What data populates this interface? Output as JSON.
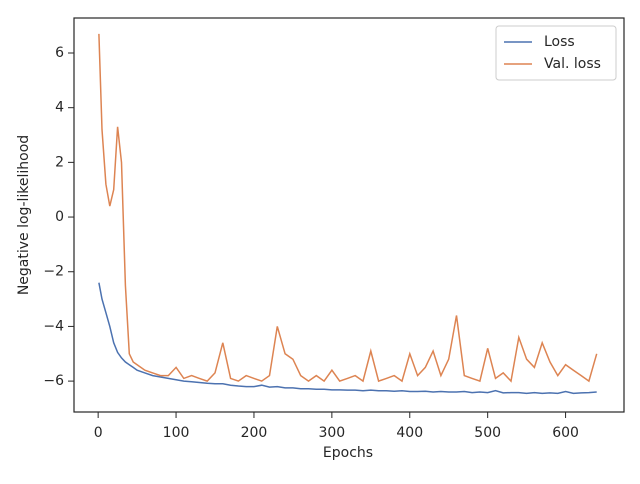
{
  "chart_data": {
    "type": "line",
    "xlabel": "Epochs",
    "ylabel": "Negative log-likelihood",
    "x": [
      1,
      5,
      10,
      15,
      20,
      25,
      30,
      35,
      40,
      45,
      50,
      60,
      70,
      80,
      90,
      100,
      110,
      120,
      130,
      140,
      150,
      160,
      170,
      180,
      190,
      200,
      210,
      220,
      230,
      240,
      250,
      260,
      270,
      280,
      290,
      300,
      310,
      320,
      330,
      340,
      350,
      360,
      370,
      380,
      390,
      400,
      410,
      420,
      430,
      440,
      450,
      460,
      470,
      480,
      490,
      500,
      510,
      520,
      530,
      540,
      550,
      560,
      570,
      580,
      590,
      600,
      610,
      620,
      630,
      640
    ],
    "series": [
      {
        "name": "Loss",
        "color": "#4c72b0",
        "values": [
          -2.4,
          -3.0,
          -3.5,
          -4.0,
          -4.6,
          -4.95,
          -5.15,
          -5.3,
          -5.4,
          -5.5,
          -5.6,
          -5.7,
          -5.8,
          -5.85,
          -5.9,
          -5.95,
          -6.0,
          -6.02,
          -6.05,
          -6.08,
          -6.1,
          -6.1,
          -6.15,
          -6.18,
          -6.2,
          -6.2,
          -6.15,
          -6.22,
          -6.2,
          -6.25,
          -6.25,
          -6.28,
          -6.28,
          -6.3,
          -6.3,
          -6.32,
          -6.32,
          -6.33,
          -6.33,
          -6.35,
          -6.33,
          -6.35,
          -6.35,
          -6.37,
          -6.35,
          -6.38,
          -6.38,
          -6.37,
          -6.4,
          -6.38,
          -6.4,
          -6.4,
          -6.38,
          -6.42,
          -6.4,
          -6.42,
          -6.35,
          -6.43,
          -6.42,
          -6.42,
          -6.45,
          -6.42,
          -6.45,
          -6.43,
          -6.45,
          -6.38,
          -6.45,
          -6.43,
          -6.42,
          -6.4
        ]
      },
      {
        "name": "Val. loss",
        "color": "#dd8452",
        "values": [
          6.7,
          3.2,
          1.2,
          0.4,
          1.0,
          3.3,
          2.0,
          -2.5,
          -5.0,
          -5.3,
          -5.4,
          -5.6,
          -5.7,
          -5.8,
          -5.8,
          -5.5,
          -5.9,
          -5.8,
          -5.9,
          -6.0,
          -5.7,
          -4.6,
          -5.9,
          -6.0,
          -5.8,
          -5.9,
          -6.0,
          -5.8,
          -4.0,
          -5.0,
          -5.2,
          -5.8,
          -6.0,
          -5.8,
          -6.0,
          -5.6,
          -6.0,
          -5.9,
          -5.8,
          -6.0,
          -4.9,
          -6.0,
          -5.9,
          -5.8,
          -6.0,
          -5.0,
          -5.8,
          -5.5,
          -4.9,
          -5.8,
          -5.2,
          -3.6,
          -5.8,
          -5.9,
          -6.0,
          -4.8,
          -5.9,
          -5.7,
          -6.0,
          -4.4,
          -5.2,
          -5.5,
          -4.6,
          -5.3,
          -5.8,
          -5.4,
          -5.6,
          -5.8,
          -6.0,
          -5.0
        ]
      }
    ],
    "xlim": [
      -31,
      675
    ],
    "ylim": [
      -7.13,
      7.28
    ],
    "xticks": [
      0,
      100,
      200,
      300,
      400,
      500,
      600
    ],
    "yticks": [
      {
        "value": -6,
        "label": "−6"
      },
      {
        "value": -4,
        "label": "−4"
      },
      {
        "value": -2,
        "label": "−2"
      },
      0,
      2,
      4,
      6
    ],
    "legend": "upper right"
  }
}
